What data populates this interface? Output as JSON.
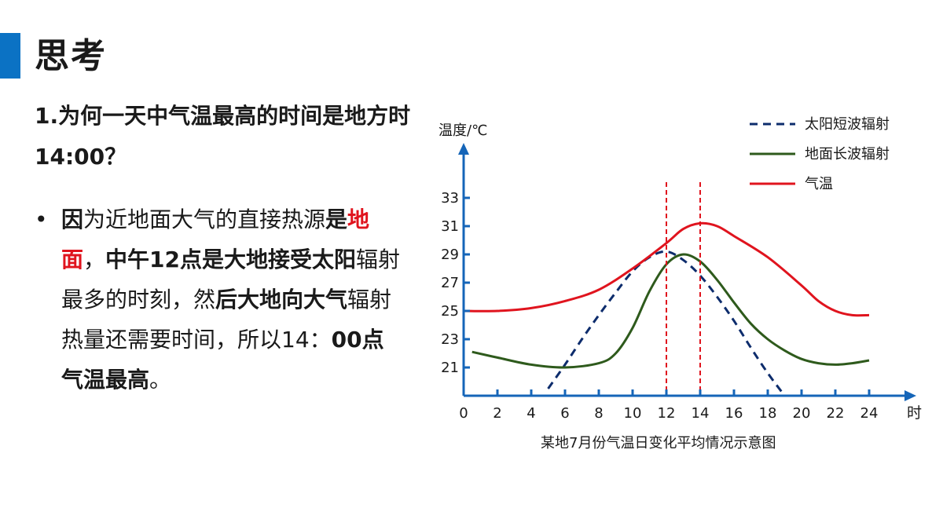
{
  "slide": {
    "title": "思考",
    "question": "1.为何一天中气温最高的时间是地方时14:00？",
    "bullet": "•",
    "answer": {
      "p1": "因",
      "p2": "为近地面大气的直接热源",
      "p3": "是",
      "p4": "地面",
      "p5": "，",
      "p6": "中午12点是大地接受太阳",
      "p7": "辐射最多的时刻，然",
      "p8": "后大地向大气",
      "p9": "辐射热量还需要时间，所以14：",
      "p10": "00点气温最高",
      "p11": "。"
    }
  },
  "colors": {
    "accent": "#0b72c4",
    "highlight": "#e0141e",
    "solar": "#0d2c6c",
    "ground": "#2e5a1c",
    "air": "#e0141e",
    "axis": "#1565b8"
  },
  "chart_data": {
    "type": "line",
    "title": "某地7月份气温日变化平均情况示意图",
    "xlabel": "时",
    "ylabel": "温度/℃",
    "xlim": [
      0,
      24
    ],
    "ylim": [
      19,
      33
    ],
    "xticks": [
      0,
      2,
      4,
      6,
      8,
      10,
      12,
      14,
      16,
      18,
      20,
      22,
      24
    ],
    "yticks": [
      21,
      23,
      25,
      27,
      29,
      31,
      33
    ],
    "legend_position": "top-right",
    "series": [
      {
        "name": "太阳短波辐射",
        "style": "dashed",
        "color": "#0d2c6c",
        "points": [
          [
            5,
            19.5
          ],
          [
            6,
            21.2
          ],
          [
            7,
            23.0
          ],
          [
            8,
            24.7
          ],
          [
            9,
            26.3
          ],
          [
            10,
            27.8
          ],
          [
            11,
            28.8
          ],
          [
            12,
            29.2
          ],
          [
            13,
            28.6
          ],
          [
            14,
            27.5
          ],
          [
            15,
            26.0
          ],
          [
            16,
            24.3
          ],
          [
            17,
            22.4
          ],
          [
            18,
            20.6
          ],
          [
            19,
            19.0
          ]
        ]
      },
      {
        "name": "地面长波辐射",
        "style": "solid",
        "color": "#2e5a1c",
        "points": [
          [
            0.5,
            22.1
          ],
          [
            2,
            21.7
          ],
          [
            4,
            21.2
          ],
          [
            6,
            21.0
          ],
          [
            8,
            21.3
          ],
          [
            9,
            22.0
          ],
          [
            10,
            23.8
          ],
          [
            11,
            26.4
          ],
          [
            12,
            28.3
          ],
          [
            13,
            29.0
          ],
          [
            14,
            28.5
          ],
          [
            15,
            27.2
          ],
          [
            16,
            25.6
          ],
          [
            17,
            24.1
          ],
          [
            18,
            23.0
          ],
          [
            19,
            22.2
          ],
          [
            20,
            21.6
          ],
          [
            21,
            21.3
          ],
          [
            22,
            21.2
          ],
          [
            23,
            21.3
          ],
          [
            24,
            21.5
          ]
        ]
      },
      {
        "name": "气温",
        "style": "solid",
        "color": "#e0141e",
        "points": [
          [
            0,
            25.0
          ],
          [
            2,
            25.0
          ],
          [
            4,
            25.2
          ],
          [
            6,
            25.7
          ],
          [
            8,
            26.5
          ],
          [
            10,
            28.0
          ],
          [
            12,
            29.8
          ],
          [
            13,
            30.8
          ],
          [
            14,
            31.2
          ],
          [
            15,
            31.0
          ],
          [
            16,
            30.3
          ],
          [
            18,
            28.8
          ],
          [
            20,
            26.8
          ],
          [
            21,
            25.7
          ],
          [
            22,
            25.0
          ],
          [
            23,
            24.7
          ],
          [
            24,
            24.7
          ]
        ]
      }
    ],
    "markers": [
      {
        "x": 12,
        "style": "dashed",
        "color": "#e0141e"
      },
      {
        "x": 14,
        "style": "dashed",
        "color": "#e0141e"
      }
    ]
  }
}
